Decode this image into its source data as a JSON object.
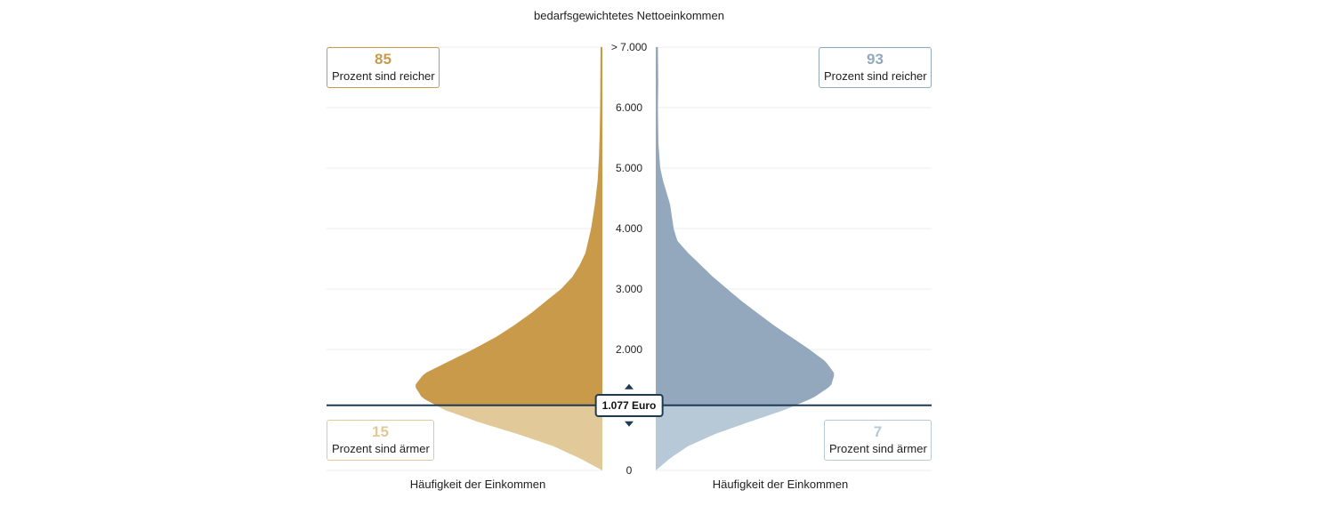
{
  "colors": {
    "left_upper": "#c99a4a",
    "left_lower": "#e1c99a",
    "right_upper": "#93a8bc",
    "right_lower": "#b7c8d7",
    "marker": "#1f3a55",
    "left_border": "#c99a4a",
    "right_border": "#93a8bc"
  },
  "chart_data": {
    "type": "violin",
    "title": "bedarfsgewichtetes Nettoeinkommen",
    "y_axis": {
      "min": 0,
      "max": 7000,
      "ticks": [
        {
          "value": 0,
          "label": "0"
        },
        {
          "value": 2000,
          "label": "2.000"
        },
        {
          "value": 3000,
          "label": "3.000"
        },
        {
          "value": 4000,
          "label": "4.000"
        },
        {
          "value": 5000,
          "label": "5.000"
        },
        {
          "value": 6000,
          "label": "6.000"
        },
        {
          "value": 7000,
          "label": "> 7.000"
        }
      ]
    },
    "xlabel_left": "Häufigkeit der Einkommen",
    "xlabel_right": "Häufigkeit der Einkommen",
    "threshold": {
      "value": 1077,
      "label": "1.077 Euro"
    },
    "series": [
      {
        "name": "left",
        "density": [
          [
            0,
            0.0
          ],
          [
            200,
            0.12
          ],
          [
            400,
            0.26
          ],
          [
            600,
            0.45
          ],
          [
            800,
            0.66
          ],
          [
            1000,
            0.84
          ],
          [
            1200,
            0.96
          ],
          [
            1400,
            1.0
          ],
          [
            1600,
            0.95
          ],
          [
            1800,
            0.82
          ],
          [
            2000,
            0.69
          ],
          [
            2200,
            0.57
          ],
          [
            2400,
            0.47
          ],
          [
            2600,
            0.38
          ],
          [
            2800,
            0.3
          ],
          [
            3000,
            0.22
          ],
          [
            3200,
            0.16
          ],
          [
            3400,
            0.12
          ],
          [
            3600,
            0.09
          ],
          [
            4000,
            0.06
          ],
          [
            4400,
            0.04
          ],
          [
            4800,
            0.025
          ],
          [
            5200,
            0.018
          ],
          [
            5600,
            0.014
          ],
          [
            6000,
            0.012
          ],
          [
            6400,
            0.011
          ],
          [
            7000,
            0.01
          ]
        ],
        "share_above": {
          "value": 85,
          "text": "Prozent sind reicher"
        },
        "share_below": {
          "value": 15,
          "text": "Prozent sind ärmer"
        }
      },
      {
        "name": "right",
        "density": [
          [
            0,
            0.0
          ],
          [
            200,
            0.08
          ],
          [
            400,
            0.18
          ],
          [
            600,
            0.33
          ],
          [
            800,
            0.52
          ],
          [
            1000,
            0.72
          ],
          [
            1200,
            0.88
          ],
          [
            1400,
            0.98
          ],
          [
            1600,
            1.0
          ],
          [
            1800,
            0.95
          ],
          [
            2000,
            0.86
          ],
          [
            2200,
            0.76
          ],
          [
            2400,
            0.66
          ],
          [
            2600,
            0.57
          ],
          [
            2800,
            0.48
          ],
          [
            3000,
            0.4
          ],
          [
            3200,
            0.32
          ],
          [
            3400,
            0.25
          ],
          [
            3600,
            0.18
          ],
          [
            3800,
            0.12
          ],
          [
            4000,
            0.1
          ],
          [
            4200,
            0.09
          ],
          [
            4400,
            0.08
          ],
          [
            4600,
            0.06
          ],
          [
            4800,
            0.04
          ],
          [
            5000,
            0.025
          ],
          [
            5400,
            0.015
          ],
          [
            6000,
            0.012
          ],
          [
            6400,
            0.014
          ],
          [
            7000,
            0.012
          ]
        ],
        "share_above": {
          "value": 93,
          "text": "Prozent sind reicher"
        },
        "share_below": {
          "value": 7,
          "text": "Prozent sind ärmer"
        }
      }
    ]
  }
}
